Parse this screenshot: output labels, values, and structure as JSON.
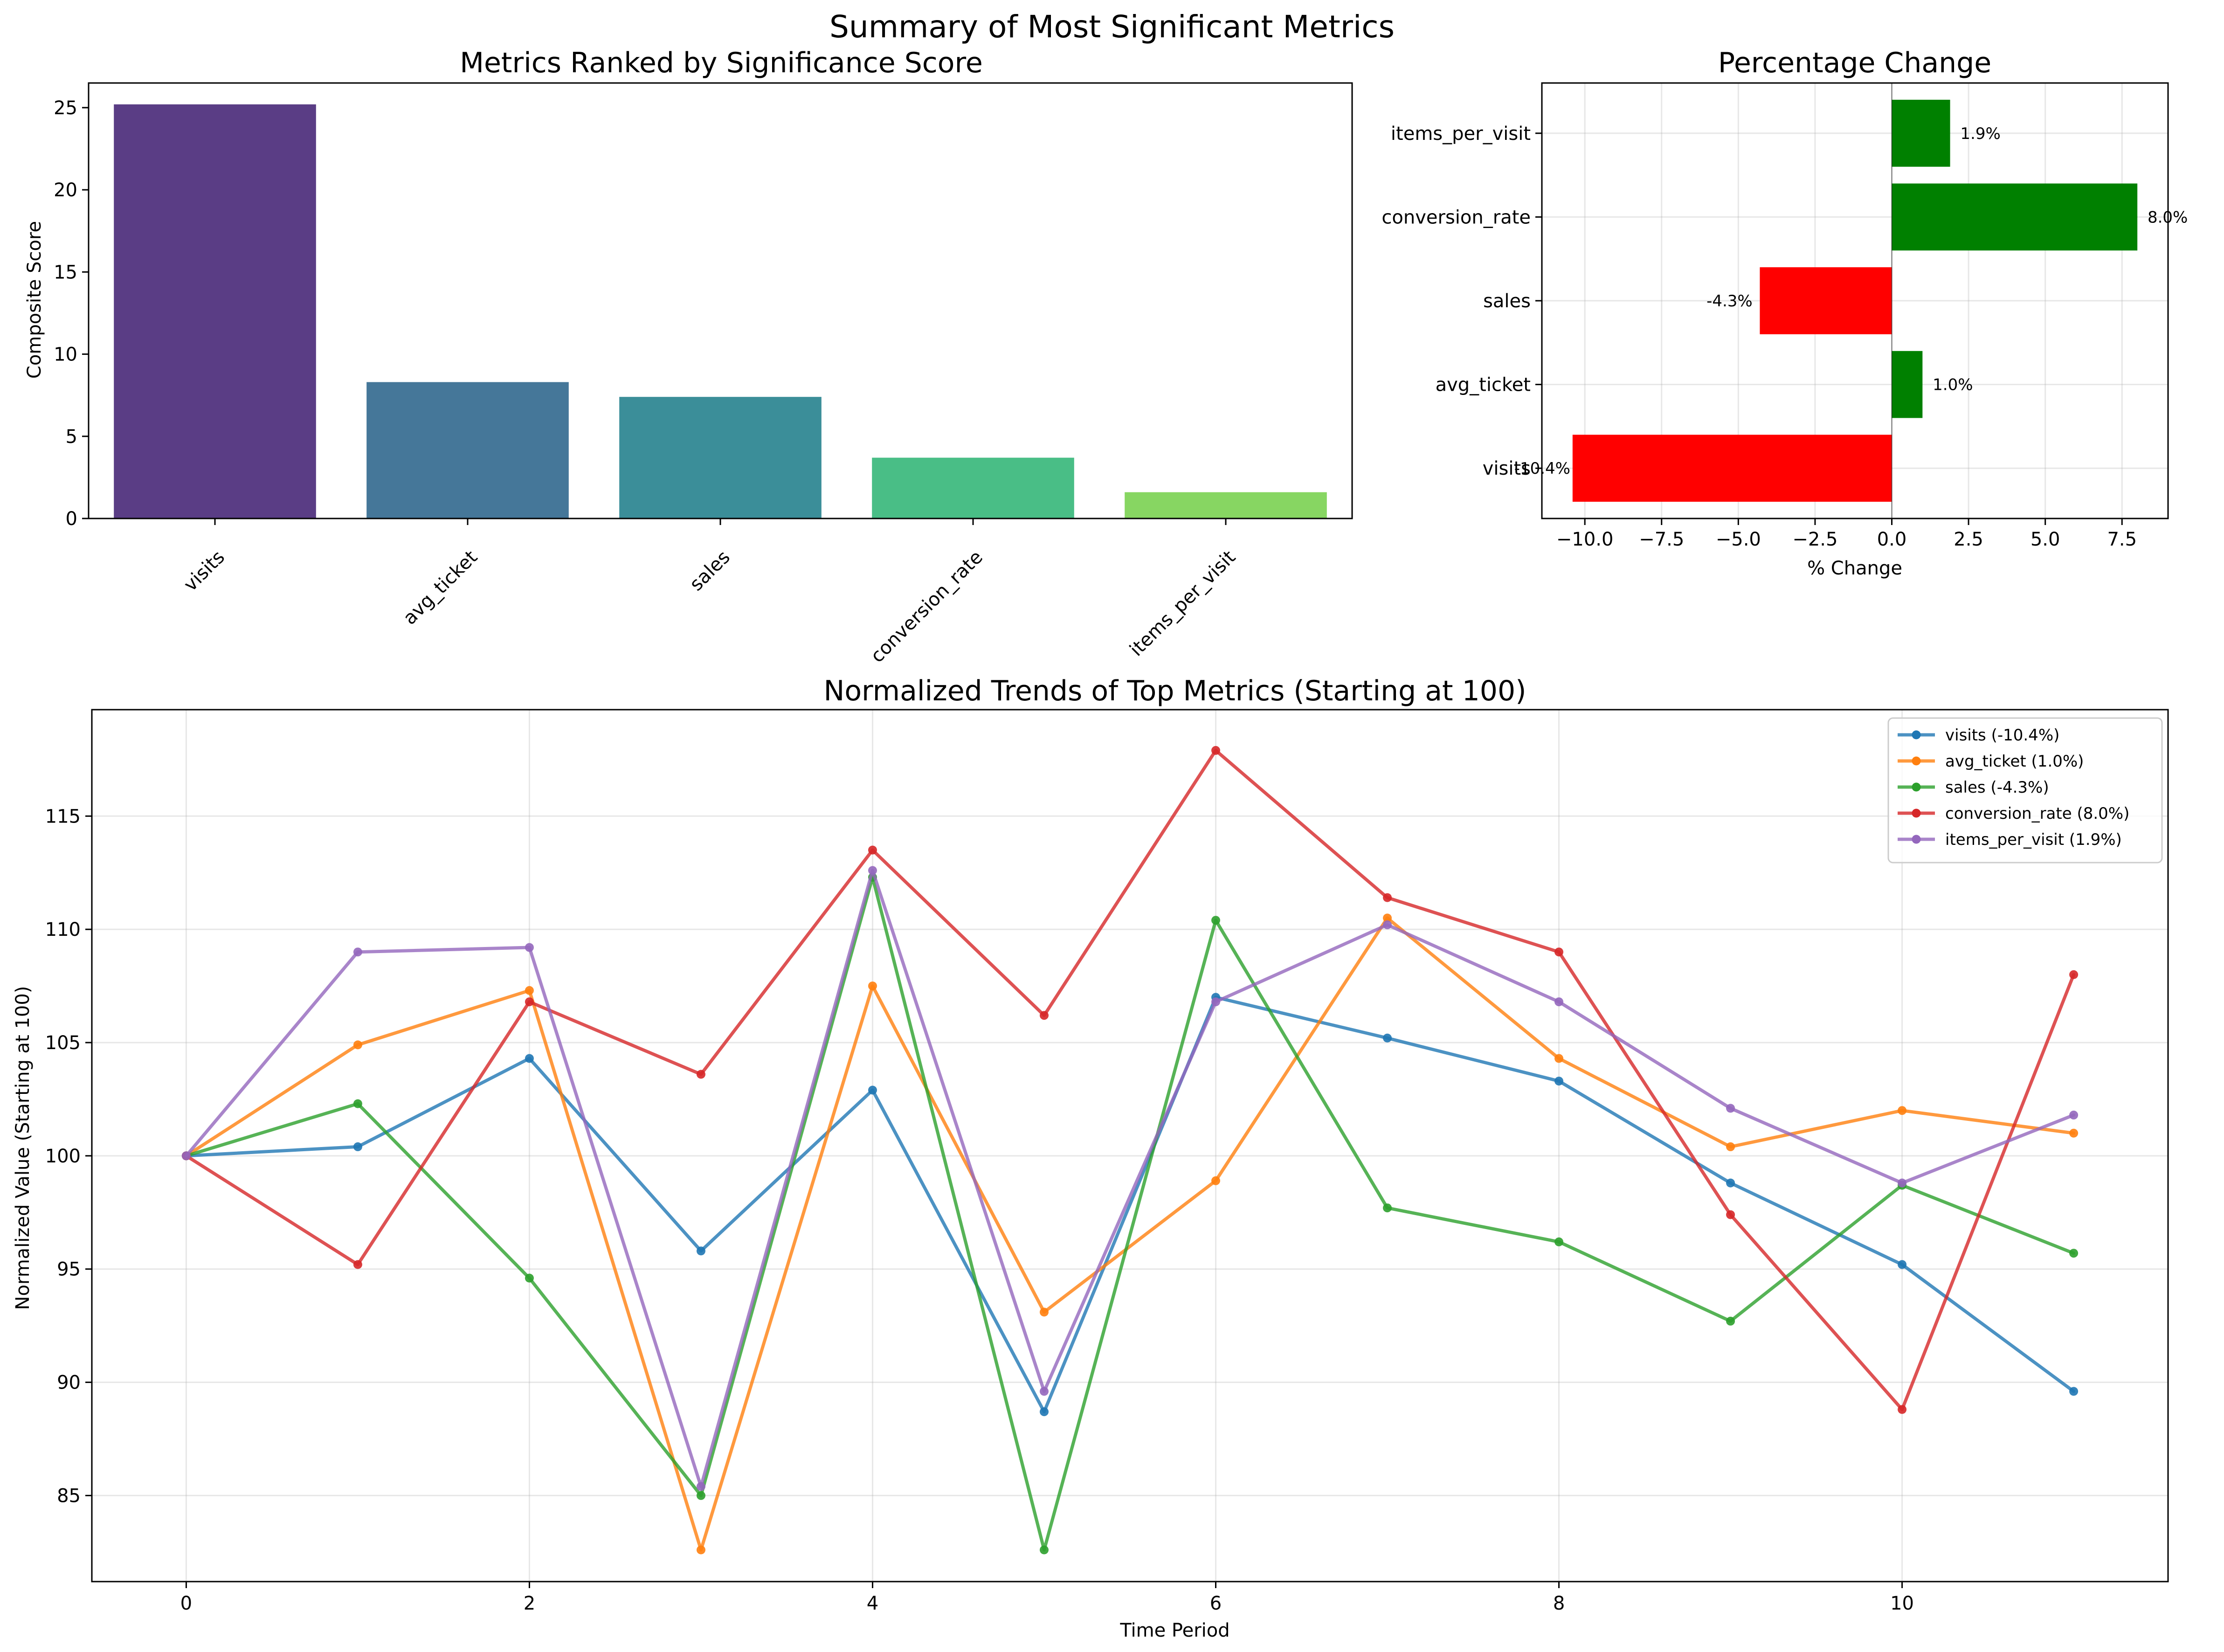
{
  "figure": {
    "title": "Summary of Most Significant Metrics"
  },
  "chart_data": [
    {
      "type": "bar",
      "title": "Metrics Ranked by Significance Score",
      "xlabel": "",
      "ylabel": "Composite Score",
      "categories": [
        "visits",
        "avg_ticket",
        "sales",
        "conversion_rate",
        "items_per_visit"
      ],
      "values": [
        25.2,
        8.3,
        7.4,
        3.7,
        1.6
      ],
      "colors": [
        "#482878",
        "#31688e",
        "#26828e",
        "#35b779",
        "#7ad151"
      ],
      "ylim": [
        0,
        26.5
      ],
      "yticks": [
        0,
        5,
        10,
        15,
        20,
        25
      ],
      "grid": false
    },
    {
      "type": "bar",
      "orientation": "horizontal",
      "title": "Percentage Change",
      "xlabel": "% Change",
      "ylabel": "",
      "categories": [
        "visits",
        "avg_ticket",
        "sales",
        "conversion_rate",
        "items_per_visit"
      ],
      "values": [
        -10.4,
        1.0,
        -4.3,
        8.0,
        1.9
      ],
      "data_labels": [
        "-10.4%",
        "1.0%",
        "-4.3%",
        "8.0%",
        "1.9%"
      ],
      "colors": {
        "positive": "#008000",
        "negative": "#ff0000"
      },
      "xlim": [
        -11.4,
        9.0
      ],
      "xticks": [
        -10.0,
        -7.5,
        -5.0,
        -2.5,
        0.0,
        2.5,
        5.0,
        7.5
      ],
      "xtick_labels": [
        "−10.0",
        "−7.5",
        "−5.0",
        "−2.5",
        "0.0",
        "2.5",
        "5.0",
        "7.5"
      ],
      "grid": true
    },
    {
      "type": "line",
      "title": "Normalized Trends of Top Metrics (Starting at 100)",
      "xlabel": "Time Period",
      "ylabel": "Normalized Value (Starting at 100)",
      "x": [
        0,
        1,
        2,
        3,
        4,
        5,
        6,
        7,
        8,
        9,
        10,
        11
      ],
      "xlim": [
        -0.55,
        11.55
      ],
      "ylim": [
        81.2,
        119.7
      ],
      "xticks": [
        0,
        2,
        4,
        6,
        8,
        10
      ],
      "yticks": [
        85,
        90,
        95,
        100,
        105,
        110,
        115
      ],
      "grid": true,
      "legend_position": "top-right",
      "series": [
        {
          "name": "visits (-10.4%)",
          "color": "#1f77b4",
          "values": [
            100,
            100.4,
            104.3,
            95.8,
            102.9,
            88.7,
            107.0,
            105.2,
            103.3,
            98.8,
            95.2,
            89.6
          ]
        },
        {
          "name": "avg_ticket (1.0%)",
          "color": "#ff7f0e",
          "values": [
            100,
            104.9,
            107.3,
            82.6,
            107.5,
            93.1,
            98.9,
            110.5,
            104.3,
            100.4,
            102.0,
            101.0
          ]
        },
        {
          "name": "sales (-4.3%)",
          "color": "#2ca02c",
          "values": [
            100,
            102.3,
            94.6,
            85.0,
            112.3,
            82.6,
            110.4,
            97.7,
            96.2,
            92.7,
            98.7,
            95.7
          ]
        },
        {
          "name": "conversion_rate (8.0%)",
          "color": "#d62728",
          "values": [
            100,
            95.2,
            106.8,
            103.6,
            113.5,
            106.2,
            117.9,
            111.4,
            109.0,
            97.4,
            88.8,
            108.0
          ]
        },
        {
          "name": "items_per_visit (1.9%)",
          "color": "#9467bd",
          "values": [
            100,
            109.0,
            109.2,
            85.4,
            112.6,
            89.6,
            106.8,
            110.2,
            106.8,
            102.1,
            98.8,
            101.8
          ]
        }
      ]
    }
  ]
}
